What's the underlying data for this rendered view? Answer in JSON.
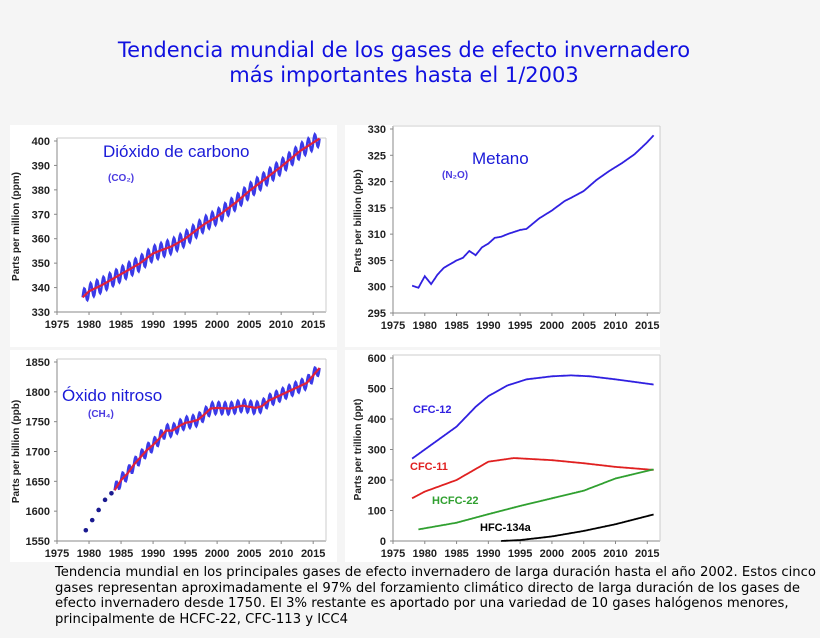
{
  "title": {
    "line1": "Tendencia mundial de los gases de efecto invernadero",
    "line2": "más importantes hasta el 1/2003"
  },
  "caption": "Tendencia mundial en los principales gases de efecto invernadero de larga duración hasta el año 2002. Estos cinco gases representan aproximadamente el 97% del forzamiento climático directo de larga duración de los gases de efecto invernadero desde 1750. El 3% restante es aportado por una variedad de 10 gases halógenos menores, principalmente de HCFC-22, CFC-113 y ICC4",
  "chart_data": [
    {
      "type": "line",
      "title": "Dióxido de carbono",
      "subtitle": "(CO₂)",
      "ylabel": "Parts per million (ppm)",
      "xlim": [
        1975,
        2017
      ],
      "ylim": [
        330,
        400
      ],
      "xticks": [
        1975,
        1980,
        1985,
        1990,
        1995,
        2000,
        2005,
        2010,
        2015
      ],
      "yticks": [
        330,
        340,
        350,
        360,
        370,
        380,
        390,
        400
      ],
      "seasonal_amplitude": 3,
      "series": [
        {
          "color": "#e0203a",
          "style": "trend-with-seasonal-cycle-blue",
          "x": [
            1979,
            1980,
            1982,
            1985,
            1988,
            1990,
            1993,
            1995,
            1998,
            2000,
            2003,
            2005,
            2008,
            2010,
            2013,
            2016
          ],
          "y": [
            336,
            338.5,
            341,
            345.5,
            350,
            354,
            357,
            360,
            366,
            369,
            375,
            379.5,
            385.5,
            389.5,
            396,
            401
          ]
        }
      ]
    },
    {
      "type": "line",
      "title": "Metano",
      "subtitle": "(N₂O)",
      "ylabel": "Parts per billion (ppb)",
      "xlim": [
        1975,
        2017
      ],
      "ylim": [
        295,
        330
      ],
      "xticks": [
        1975,
        1980,
        1985,
        1990,
        1995,
        2000,
        2005,
        2010,
        2015
      ],
      "yticks": [
        295,
        300,
        305,
        310,
        315,
        320,
        325,
        330
      ],
      "series": [
        {
          "color": "#3020e0",
          "x": [
            1978,
            1979,
            1980,
            1981,
            1982,
            1983,
            1985,
            1986,
            1987,
            1988,
            1989,
            1990,
            1991,
            1992,
            1993,
            1995,
            1996,
            1997,
            1998,
            2000,
            2002,
            2003,
            2005,
            2007,
            2009,
            2011,
            2013,
            2015,
            2016
          ],
          "y": [
            300.2,
            299.8,
            302,
            300.5,
            302.3,
            303.6,
            305,
            305.5,
            306.8,
            306,
            307.5,
            308.2,
            309.3,
            309.5,
            310,
            310.8,
            311,
            312,
            313,
            314.5,
            316.3,
            316.9,
            318.2,
            320.3,
            322,
            323.5,
            325.2,
            327.5,
            328.8
          ]
        }
      ]
    },
    {
      "type": "line",
      "title": "Óxido nitroso",
      "subtitle": "(CH₄)",
      "ylabel": "Parts per billion (ppb)",
      "xlim": [
        1975,
        2017
      ],
      "ylim": [
        1550,
        1850
      ],
      "xticks": [
        1975,
        1980,
        1985,
        1990,
        1995,
        2000,
        2005,
        2010,
        2015
      ],
      "yticks": [
        1550,
        1600,
        1650,
        1700,
        1750,
        1800,
        1850
      ],
      "seasonal_amplitude": 10,
      "points": {
        "color": "#1a1a90",
        "x": [
          1979.5,
          1980.5,
          1981.5,
          1982.5,
          1983.5
        ],
        "y": [
          1568,
          1585,
          1602,
          1619,
          1630
        ]
      },
      "series": [
        {
          "color": "#e0203a",
          "style": "trend-with-seasonal-cycle-blue",
          "x": [
            1984,
            1985,
            1986,
            1987,
            1988,
            1989,
            1990,
            1991,
            1992,
            1993,
            1994,
            1995,
            1996,
            1997,
            1998,
            1999,
            2000,
            2002,
            2004,
            2006,
            2007,
            2008,
            2010,
            2012,
            2014,
            2016
          ],
          "y": [
            1635,
            1652,
            1663,
            1678,
            1690,
            1702,
            1711,
            1722,
            1735,
            1735,
            1742,
            1748,
            1750,
            1753,
            1762,
            1772,
            1773,
            1772,
            1777,
            1773,
            1776,
            1785,
            1795,
            1805,
            1815,
            1840
          ]
        }
      ]
    },
    {
      "type": "line",
      "ylabel": "Parts per trillion (ppt)",
      "xlim": [
        1975,
        2017
      ],
      "ylim": [
        0,
        600
      ],
      "xticks": [
        1975,
        1980,
        1985,
        1990,
        1995,
        2000,
        2005,
        2010,
        2015
      ],
      "yticks": [
        0,
        100,
        200,
        300,
        400,
        500,
        600
      ],
      "series": [
        {
          "name": "CFC-12",
          "color": "#3020e0",
          "x": [
            1978,
            1980,
            1982,
            1985,
            1988,
            1990,
            1993,
            1996,
            2000,
            2003,
            2006,
            2010,
            2016
          ],
          "y": [
            270,
            300,
            330,
            375,
            440,
            475,
            510,
            530,
            540,
            543,
            540,
            530,
            513
          ]
        },
        {
          "name": "CFC-11",
          "color": "#e02020",
          "x": [
            1978,
            1980,
            1985,
            1990,
            1994,
            2000,
            2005,
            2010,
            2016
          ],
          "y": [
            140,
            162,
            200,
            260,
            272,
            265,
            255,
            243,
            233
          ]
        },
        {
          "name": "HCFC-22",
          "color": "#30a030",
          "x": [
            1979,
            1985,
            1990,
            1995,
            2000,
            2005,
            2010,
            2016
          ],
          "y": [
            38,
            60,
            88,
            115,
            140,
            165,
            205,
            235
          ]
        },
        {
          "name": "HFC-134a",
          "color": "#000000",
          "x": [
            1992,
            1995,
            2000,
            2005,
            2010,
            2016
          ],
          "y": [
            0,
            3,
            15,
            33,
            55,
            87
          ]
        }
      ]
    }
  ]
}
